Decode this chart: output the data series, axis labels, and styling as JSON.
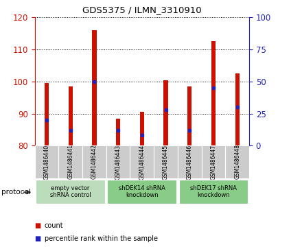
{
  "title": "GDS5375 / ILMN_3310910",
  "samples": [
    "GSM1486440",
    "GSM1486441",
    "GSM1486442",
    "GSM1486443",
    "GSM1486444",
    "GSM1486445",
    "GSM1486446",
    "GSM1486447",
    "GSM1486448"
  ],
  "count_values": [
    99.5,
    98.5,
    116.0,
    88.5,
    90.5,
    100.5,
    98.5,
    112.5,
    102.5
  ],
  "percentile_values": [
    20.0,
    12.0,
    50.0,
    12.0,
    8.0,
    28.0,
    12.0,
    45.0,
    30.0
  ],
  "ylim_left": [
    80,
    120
  ],
  "ylim_right": [
    0,
    100
  ],
  "yticks_left": [
    80,
    90,
    100,
    110,
    120
  ],
  "yticks_right": [
    0,
    25,
    50,
    75,
    100
  ],
  "bar_color": "#cc1100",
  "dot_color": "#2222bb",
  "bar_width": 0.18,
  "groups": [
    {
      "label": "empty vector\nshRNA control",
      "start": 0,
      "end": 3,
      "color": "#bbddbb"
    },
    {
      "label": "shDEK14 shRNA\nknockdown",
      "start": 3,
      "end": 6,
      "color": "#88cc88"
    },
    {
      "label": "shDEK17 shRNA\nknockdown",
      "start": 6,
      "end": 9,
      "color": "#88cc88"
    }
  ],
  "protocol_label": "protocol",
  "legend_count_label": "count",
  "legend_pct_label": "percentile rank within the sample",
  "left_axis_color": "#cc1100",
  "right_axis_color": "#2222bb",
  "background_plot": "#ffffff",
  "background_label": "#cccccc"
}
